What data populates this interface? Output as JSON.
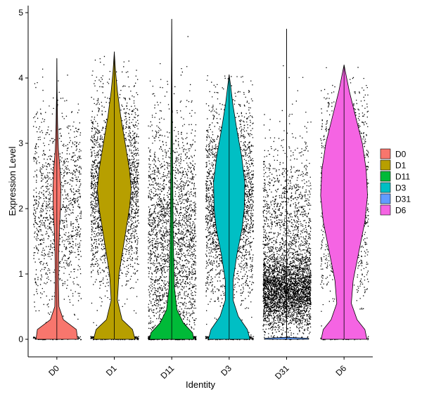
{
  "chart_data": {
    "type": "violin",
    "xlabel": "Identity",
    "ylabel": "Expression Level",
    "ylim": [
      -0.25,
      5.1
    ],
    "yticks": [
      0,
      1,
      2,
      3,
      4,
      5
    ],
    "grid": false,
    "legend_position": "right",
    "categories": [
      "D0",
      "D1",
      "D11",
      "D3",
      "D31",
      "D6"
    ],
    "series": [
      {
        "name": "D0",
        "color": "#F8766D",
        "max": 4.3,
        "zero_frac": 0.7,
        "profile": [
          [
            0,
            0.8
          ],
          [
            0.15,
            0.75
          ],
          [
            0.3,
            0.25
          ],
          [
            0.5,
            0.08
          ],
          [
            0.9,
            0.06
          ],
          [
            1.3,
            0.07
          ],
          [
            1.7,
            0.1
          ],
          [
            2.0,
            0.14
          ],
          [
            2.3,
            0.15
          ],
          [
            2.6,
            0.12
          ],
          [
            2.9,
            0.06
          ],
          [
            3.3,
            0.03
          ],
          [
            3.8,
            0.01
          ],
          [
            4.3,
            0.0
          ]
        ],
        "cloud": [
          {
            "center": 2.0,
            "sd": 0.75,
            "n": 1400
          }
        ]
      },
      {
        "name": "D1",
        "color": "#B79F00",
        "max": 4.4,
        "zero_frac": 0.35,
        "profile": [
          [
            0,
            0.8
          ],
          [
            0.15,
            0.7
          ],
          [
            0.3,
            0.3
          ],
          [
            0.6,
            0.12
          ],
          [
            1.0,
            0.18
          ],
          [
            1.5,
            0.38
          ],
          [
            2.0,
            0.58
          ],
          [
            2.3,
            0.65
          ],
          [
            2.6,
            0.58
          ],
          [
            3.0,
            0.42
          ],
          [
            3.4,
            0.25
          ],
          [
            3.8,
            0.12
          ],
          [
            4.1,
            0.05
          ],
          [
            4.4,
            0.0
          ]
        ],
        "cloud": [
          {
            "center": 2.3,
            "sd": 0.7,
            "n": 4200
          }
        ]
      },
      {
        "name": "D11",
        "color": "#00BA38",
        "max": 4.9,
        "zero_frac": 0.5,
        "profile": [
          [
            0,
            0.85
          ],
          [
            0.1,
            0.8
          ],
          [
            0.25,
            0.45
          ],
          [
            0.45,
            0.2
          ],
          [
            0.8,
            0.1
          ],
          [
            1.5,
            0.06
          ],
          [
            2.5,
            0.04
          ],
          [
            3.5,
            0.02
          ],
          [
            4.2,
            0.01
          ],
          [
            4.9,
            0.0
          ]
        ],
        "cloud": [
          {
            "center": 1.5,
            "sd": 0.95,
            "n": 3200
          }
        ]
      },
      {
        "name": "D3",
        "color": "#00BFC4",
        "max": 4.05,
        "zero_frac": 0.35,
        "profile": [
          [
            0,
            0.8
          ],
          [
            0.15,
            0.7
          ],
          [
            0.35,
            0.35
          ],
          [
            0.6,
            0.15
          ],
          [
            0.9,
            0.15
          ],
          [
            1.3,
            0.3
          ],
          [
            1.7,
            0.5
          ],
          [
            2.0,
            0.58
          ],
          [
            2.4,
            0.6
          ],
          [
            2.8,
            0.48
          ],
          [
            3.2,
            0.3
          ],
          [
            3.6,
            0.14
          ],
          [
            3.9,
            0.05
          ],
          [
            4.05,
            0.0
          ]
        ],
        "cloud": [
          {
            "center": 2.1,
            "sd": 0.75,
            "n": 3000
          }
        ]
      },
      {
        "name": "D31",
        "color": "#619CFF",
        "max": 4.75,
        "zero_frac": 0.05,
        "profile": [
          [
            0,
            0.85
          ],
          [
            0.015,
            0.85
          ],
          [
            0.03,
            0.0
          ],
          [
            4.75,
            0.0
          ]
        ],
        "cloud": [
          {
            "center": 0.75,
            "sd": 0.28,
            "n": 3000
          },
          {
            "center": 1.7,
            "sd": 0.7,
            "n": 1300
          }
        ]
      },
      {
        "name": "D6",
        "color": "#F564E3",
        "max": 4.2,
        "zero_frac": 0.4,
        "profile": [
          [
            0,
            0.88
          ],
          [
            0.15,
            0.8
          ],
          [
            0.3,
            0.5
          ],
          [
            0.55,
            0.28
          ],
          [
            0.9,
            0.35
          ],
          [
            1.3,
            0.55
          ],
          [
            1.8,
            0.8
          ],
          [
            2.2,
            0.9
          ],
          [
            2.6,
            0.85
          ],
          [
            3.0,
            0.7
          ],
          [
            3.4,
            0.45
          ],
          [
            3.8,
            0.2
          ],
          [
            4.1,
            0.05
          ],
          [
            4.2,
            0.0
          ]
        ],
        "cloud": [
          {
            "center": 2.2,
            "sd": 0.8,
            "n": 1600
          }
        ]
      }
    ]
  }
}
